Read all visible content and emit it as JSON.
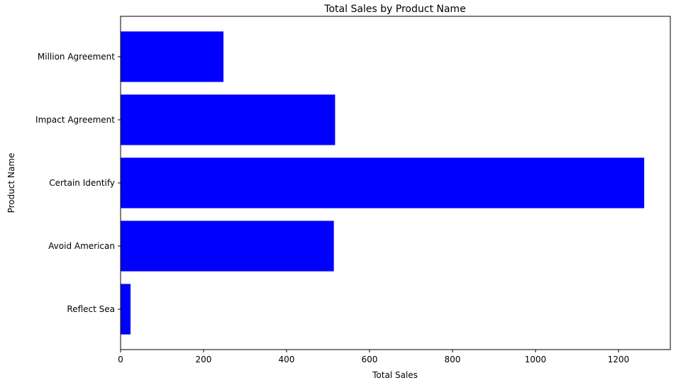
{
  "chart_data": {
    "type": "bar",
    "orientation": "horizontal",
    "title": "Total Sales by Product Name",
    "xlabel": "Total Sales",
    "ylabel": "Product Name",
    "categories": [
      "Reflect Sea",
      "Avoid American",
      "Certain Identify",
      "Impact Agreement",
      "Million Agreement"
    ],
    "values": [
      24,
      514,
      1262,
      517,
      248
    ],
    "xlim": [
      0,
      1325
    ],
    "xticks": [
      0,
      200,
      400,
      600,
      800,
      1000,
      1200
    ],
    "grid": false,
    "legend": "none",
    "bar_color": "#0000ff"
  }
}
